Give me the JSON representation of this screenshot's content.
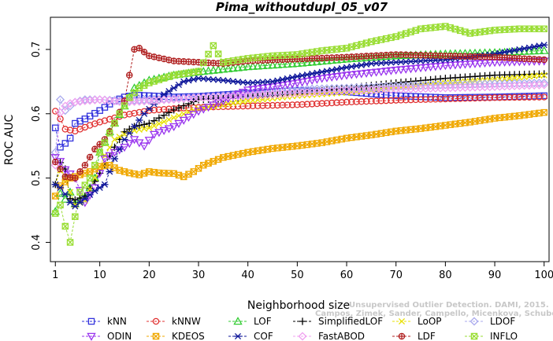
{
  "chart_data": {
    "type": "line",
    "title": "Pima_withoutdupl_05_v07",
    "xlabel": "Neighborhood size",
    "ylabel": "ROC AUC",
    "xlim": [
      0,
      101
    ],
    "ylim": [
      0.37,
      0.75
    ],
    "x_ticks": [
      1,
      10,
      20,
      30,
      40,
      50,
      60,
      70,
      80,
      90,
      100
    ],
    "y_ticks": [
      0.4,
      0.5,
      0.6,
      0.7
    ],
    "watermark": [
      "Unsupervised Outlier Detection. DAMI, 2015.",
      "Campos, Zimek, Sander, Campello, Micenkova, Schubert, Assent, Houle"
    ],
    "legend_position": "bottom",
    "series": [
      {
        "name": "kNN",
        "color": "#3333dd",
        "marker": "square",
        "points": [
          [
            1,
            0.578
          ],
          [
            2,
            0.548
          ],
          [
            3,
            0.554
          ],
          [
            4,
            0.562
          ],
          [
            5,
            0.585
          ],
          [
            7,
            0.592
          ],
          [
            10,
            0.605
          ],
          [
            13,
            0.62
          ],
          [
            15,
            0.626
          ],
          [
            17,
            0.629
          ],
          [
            20,
            0.628
          ],
          [
            25,
            0.626
          ],
          [
            30,
            0.627
          ],
          [
            40,
            0.632
          ],
          [
            50,
            0.636
          ],
          [
            60,
            0.634
          ],
          [
            70,
            0.628
          ],
          [
            80,
            0.625
          ],
          [
            90,
            0.626
          ],
          [
            100,
            0.628
          ]
        ]
      },
      {
        "name": "kNNW",
        "color": "#e03030",
        "marker": "circle",
        "points": [
          [
            1,
            0.604
          ],
          [
            2,
            0.592
          ],
          [
            3,
            0.576
          ],
          [
            5,
            0.573
          ],
          [
            8,
            0.582
          ],
          [
            10,
            0.587
          ],
          [
            15,
            0.598
          ],
          [
            20,
            0.605
          ],
          [
            25,
            0.608
          ],
          [
            30,
            0.61
          ],
          [
            40,
            0.612
          ],
          [
            50,
            0.614
          ],
          [
            60,
            0.618
          ],
          [
            70,
            0.621
          ],
          [
            80,
            0.623
          ],
          [
            90,
            0.625
          ],
          [
            100,
            0.626
          ]
        ]
      },
      {
        "name": "LOF",
        "color": "#33cc33",
        "marker": "triangle",
        "points": [
          [
            1,
            0.448
          ],
          [
            2,
            0.476
          ],
          [
            3,
            0.467
          ],
          [
            4,
            0.478
          ],
          [
            5,
            0.46
          ],
          [
            7,
            0.47
          ],
          [
            9,
            0.5
          ],
          [
            10,
            0.54
          ],
          [
            12,
            0.572
          ],
          [
            15,
            0.612
          ],
          [
            17,
            0.64
          ],
          [
            20,
            0.652
          ],
          [
            25,
            0.66
          ],
          [
            30,
            0.665
          ],
          [
            40,
            0.673
          ],
          [
            50,
            0.678
          ],
          [
            60,
            0.685
          ],
          [
            70,
            0.69
          ],
          [
            80,
            0.693
          ],
          [
            90,
            0.695
          ],
          [
            100,
            0.698
          ]
        ]
      },
      {
        "name": "SimplifiedLOF",
        "color": "#000000",
        "marker": "plus",
        "points": [
          [
            1,
            0.49
          ],
          [
            2,
            0.524
          ],
          [
            3,
            0.514
          ],
          [
            4,
            0.468
          ],
          [
            5,
            0.466
          ],
          [
            7,
            0.472
          ],
          [
            9,
            0.495
          ],
          [
            11,
            0.52
          ],
          [
            13,
            0.548
          ],
          [
            15,
            0.572
          ],
          [
            17,
            0.58
          ],
          [
            20,
            0.585
          ],
          [
            25,
            0.606
          ],
          [
            30,
            0.622
          ],
          [
            40,
            0.625
          ],
          [
            50,
            0.632
          ],
          [
            60,
            0.64
          ],
          [
            70,
            0.648
          ],
          [
            80,
            0.655
          ],
          [
            90,
            0.66
          ],
          [
            100,
            0.662
          ]
        ]
      },
      {
        "name": "LoOP",
        "color": "#e8e000",
        "marker": "x",
        "points": [
          [
            1,
            0.49
          ],
          [
            2,
            0.512
          ],
          [
            3,
            0.498
          ],
          [
            5,
            0.458
          ],
          [
            7,
            0.465
          ],
          [
            9,
            0.5
          ],
          [
            11,
            0.535
          ],
          [
            13,
            0.56
          ],
          [
            15,
            0.568
          ],
          [
            17,
            0.574
          ],
          [
            20,
            0.578
          ],
          [
            25,
            0.594
          ],
          [
            30,
            0.608
          ],
          [
            40,
            0.62
          ],
          [
            50,
            0.628
          ],
          [
            60,
            0.633
          ],
          [
            70,
            0.64
          ],
          [
            80,
            0.648
          ],
          [
            90,
            0.653
          ],
          [
            100,
            0.66
          ]
        ]
      },
      {
        "name": "LDOF",
        "color": "#aaaaee",
        "marker": "diamond",
        "points": [
          [
            1,
            0.54
          ],
          [
            2,
            0.622
          ],
          [
            3,
            0.605
          ],
          [
            4,
            0.612
          ],
          [
            5,
            0.618
          ],
          [
            7,
            0.622
          ],
          [
            10,
            0.622
          ],
          [
            15,
            0.62
          ],
          [
            20,
            0.622
          ],
          [
            30,
            0.625
          ],
          [
            40,
            0.63
          ],
          [
            50,
            0.638
          ],
          [
            60,
            0.64
          ],
          [
            70,
            0.643
          ],
          [
            80,
            0.645
          ],
          [
            90,
            0.647
          ],
          [
            100,
            0.648
          ]
        ]
      },
      {
        "name": "ODIN",
        "color": "#9933ee",
        "marker": "triangle-down",
        "points": [
          [
            1,
            0.532
          ],
          [
            2,
            0.526
          ],
          [
            3,
            0.513
          ],
          [
            5,
            0.5
          ],
          [
            7,
            0.462
          ],
          [
            9,
            0.485
          ],
          [
            11,
            0.53
          ],
          [
            13,
            0.54
          ],
          [
            15,
            0.548
          ],
          [
            17,
            0.56
          ],
          [
            19,
            0.55
          ],
          [
            21,
            0.568
          ],
          [
            23,
            0.574
          ],
          [
            25,
            0.58
          ],
          [
            27,
            0.59
          ],
          [
            30,
            0.604
          ],
          [
            35,
            0.62
          ],
          [
            40,
            0.637
          ],
          [
            45,
            0.642
          ],
          [
            50,
            0.648
          ],
          [
            55,
            0.655
          ],
          [
            60,
            0.66
          ],
          [
            70,
            0.668
          ],
          [
            80,
            0.675
          ],
          [
            90,
            0.68
          ],
          [
            100,
            0.682
          ]
        ]
      },
      {
        "name": "KDEOS",
        "color": "#f0a800",
        "marker": "square-x",
        "points": [
          [
            1,
            0.472
          ],
          [
            2,
            0.488
          ],
          [
            4,
            0.5
          ],
          [
            6,
            0.505
          ],
          [
            8,
            0.51
          ],
          [
            10,
            0.518
          ],
          [
            12,
            0.52
          ],
          [
            14,
            0.512
          ],
          [
            16,
            0.508
          ],
          [
            18,
            0.505
          ],
          [
            20,
            0.51
          ],
          [
            22,
            0.508
          ],
          [
            25,
            0.507
          ],
          [
            27,
            0.502
          ],
          [
            29,
            0.51
          ],
          [
            31,
            0.52
          ],
          [
            35,
            0.532
          ],
          [
            40,
            0.54
          ],
          [
            45,
            0.546
          ],
          [
            50,
            0.55
          ],
          [
            55,
            0.555
          ],
          [
            60,
            0.562
          ],
          [
            65,
            0.567
          ],
          [
            70,
            0.573
          ],
          [
            75,
            0.577
          ],
          [
            80,
            0.582
          ],
          [
            85,
            0.587
          ],
          [
            90,
            0.593
          ],
          [
            95,
            0.597
          ],
          [
            100,
            0.602
          ]
        ]
      },
      {
        "name": "COF",
        "color": "#10189a",
        "marker": "asterisk",
        "points": [
          [
            1,
            0.49
          ],
          [
            2,
            0.485
          ],
          [
            3,
            0.475
          ],
          [
            4,
            0.462
          ],
          [
            5,
            0.456
          ],
          [
            7,
            0.468
          ],
          [
            9,
            0.48
          ],
          [
            11,
            0.49
          ],
          [
            13,
            0.53
          ],
          [
            15,
            0.56
          ],
          [
            17,
            0.58
          ],
          [
            19,
            0.6
          ],
          [
            21,
            0.615
          ],
          [
            23,
            0.63
          ],
          [
            25,
            0.64
          ],
          [
            27,
            0.65
          ],
          [
            30,
            0.655
          ],
          [
            35,
            0.652
          ],
          [
            40,
            0.648
          ],
          [
            45,
            0.65
          ],
          [
            50,
            0.658
          ],
          [
            55,
            0.665
          ],
          [
            60,
            0.672
          ],
          [
            65,
            0.678
          ],
          [
            70,
            0.68
          ],
          [
            75,
            0.682
          ],
          [
            80,
            0.684
          ],
          [
            85,
            0.688
          ],
          [
            90,
            0.693
          ],
          [
            95,
            0.7
          ],
          [
            100,
            0.707
          ]
        ]
      },
      {
        "name": "FastABOD",
        "color": "#f0a0f0",
        "marker": "diamond",
        "points": [
          [
            1,
            0.52
          ],
          [
            2,
            0.602
          ],
          [
            3,
            0.612
          ],
          [
            4,
            0.616
          ],
          [
            5,
            0.618
          ],
          [
            7,
            0.62
          ],
          [
            10,
            0.622
          ],
          [
            15,
            0.618
          ],
          [
            20,
            0.62
          ],
          [
            30,
            0.625
          ],
          [
            40,
            0.628
          ],
          [
            50,
            0.632
          ],
          [
            60,
            0.636
          ],
          [
            70,
            0.638
          ],
          [
            80,
            0.64
          ],
          [
            90,
            0.642
          ],
          [
            100,
            0.645
          ]
        ]
      },
      {
        "name": "LDF",
        "color": "#b02020",
        "marker": "circle-plus",
        "points": [
          [
            1,
            0.525
          ],
          [
            2,
            0.514
          ],
          [
            3,
            0.502
          ],
          [
            5,
            0.5
          ],
          [
            7,
            0.52
          ],
          [
            9,
            0.545
          ],
          [
            11,
            0.56
          ],
          [
            13,
            0.585
          ],
          [
            15,
            0.62
          ],
          [
            17,
            0.7
          ],
          [
            18,
            0.702
          ],
          [
            20,
            0.69
          ],
          [
            25,
            0.682
          ],
          [
            30,
            0.68
          ],
          [
            35,
            0.678
          ],
          [
            40,
            0.682
          ],
          [
            50,
            0.685
          ],
          [
            60,
            0.688
          ],
          [
            70,
            0.692
          ],
          [
            80,
            0.69
          ],
          [
            90,
            0.688
          ],
          [
            100,
            0.684
          ]
        ]
      },
      {
        "name": "INFLO",
        "color": "#99dd33",
        "marker": "square-x",
        "points": [
          [
            1,
            0.445
          ],
          [
            2,
            0.458
          ],
          [
            3,
            0.425
          ],
          [
            4,
            0.4
          ],
          [
            5,
            0.44
          ],
          [
            6,
            0.478
          ],
          [
            8,
            0.5
          ],
          [
            10,
            0.54
          ],
          [
            12,
            0.57
          ],
          [
            14,
            0.6
          ],
          [
            16,
            0.625
          ],
          [
            18,
            0.64
          ],
          [
            20,
            0.648
          ],
          [
            25,
            0.66
          ],
          [
            30,
            0.666
          ],
          [
            33,
            0.706
          ],
          [
            35,
            0.68
          ],
          [
            40,
            0.686
          ],
          [
            45,
            0.69
          ],
          [
            50,
            0.692
          ],
          [
            55,
            0.698
          ],
          [
            60,
            0.702
          ],
          [
            65,
            0.712
          ],
          [
            70,
            0.72
          ],
          [
            75,
            0.732
          ],
          [
            80,
            0.736
          ],
          [
            85,
            0.725
          ],
          [
            90,
            0.73
          ],
          [
            95,
            0.732
          ],
          [
            100,
            0.732
          ]
        ]
      }
    ]
  }
}
